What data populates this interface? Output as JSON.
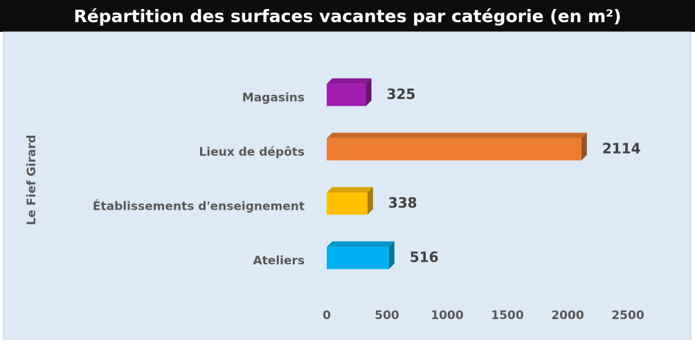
{
  "chart_data": {
    "type": "bar3d-horizontal",
    "title": "Répartition des surfaces vacantes par catégorie (en m²)",
    "y_label": "Le Fief Girard",
    "categories": [
      "Magasins",
      "Lieux de dépôts",
      "Établissements d'enseignement",
      "Ateliers"
    ],
    "values": [
      325,
      2114,
      338,
      516
    ],
    "colors": [
      "#a21caf",
      "#ed7d31",
      "#ffc000",
      "#00b0f0"
    ],
    "xlim": [
      0,
      2500
    ],
    "xticks": [
      0,
      500,
      1000,
      1500,
      2000,
      2500
    ]
  }
}
